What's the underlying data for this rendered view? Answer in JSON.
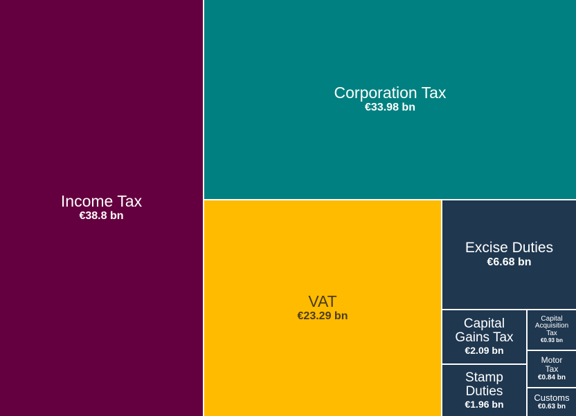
{
  "chart_data": {
    "type": "treemap",
    "unit": "€ bn",
    "items": [
      {
        "name": "Income Tax",
        "value": 38.8,
        "label": "€38.8 bn",
        "color": "#64003f",
        "text_color": "#ffffff"
      },
      {
        "name": "Corporation Tax",
        "value": 33.98,
        "label": "€33.98 bn",
        "color": "#008080",
        "text_color": "#ffffff"
      },
      {
        "name": "VAT",
        "value": 23.29,
        "label": "€23.29 bn",
        "color": "#ffbb00",
        "text_color": "#4a3b1a"
      },
      {
        "name": "Excise Duties",
        "value": 6.68,
        "label": "€6.68 bn",
        "color": "#1f374f",
        "text_color": "#ffffff"
      },
      {
        "name": "Capital Gains Tax",
        "value": 2.09,
        "label": "€2.09 bn",
        "color": "#1f374f",
        "text_color": "#ffffff"
      },
      {
        "name": "Stamp Duties",
        "value": 1.96,
        "label": "€1.96 bn",
        "color": "#1f374f",
        "text_color": "#ffffff"
      },
      {
        "name": "Capital Acquisition Tax",
        "value": 0.93,
        "label": "€0.93 bn",
        "color": "#1f374f",
        "text_color": "#ffffff"
      },
      {
        "name": "Motor Tax",
        "value": 0.84,
        "label": "€0.84 bn",
        "color": "#1f374f",
        "text_color": "#ffffff"
      },
      {
        "name": "Customs",
        "value": 0.63,
        "label": "€0.63 bn",
        "color": "#1f374f",
        "text_color": "#ffffff"
      }
    ]
  }
}
